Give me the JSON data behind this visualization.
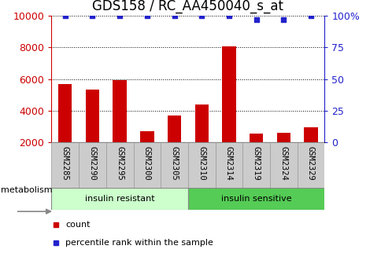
{
  "title": "GDS158 / RC_AA450040_s_at",
  "categories": [
    "GSM2285",
    "GSM2290",
    "GSM2295",
    "GSM2300",
    "GSM2305",
    "GSM2310",
    "GSM2314",
    "GSM2319",
    "GSM2324",
    "GSM2329"
  ],
  "bar_values": [
    5700,
    5350,
    5950,
    2700,
    3700,
    4400,
    8050,
    2550,
    2600,
    2950
  ],
  "bar_color": "#cc0000",
  "bar_bottom": 2000,
  "percentile_values": [
    100,
    100,
    100,
    100,
    100,
    100,
    100,
    97,
    97,
    100
  ],
  "percentile_color": "#2222cc",
  "ylim_left": [
    2000,
    10000
  ],
  "ylim_right": [
    0,
    100
  ],
  "yticks_left": [
    2000,
    4000,
    6000,
    8000,
    10000
  ],
  "yticks_right": [
    0,
    25,
    50,
    75,
    100
  ],
  "yticklabels_right": [
    "0",
    "25",
    "50",
    "75",
    "100%"
  ],
  "group1_label": "insulin resistant",
  "group2_label": "insulin sensitive",
  "group1_color": "#ccffcc",
  "group2_color": "#55cc55",
  "group1_count": 5,
  "group2_count": 5,
  "metabolism_label": "metabolism",
  "legend_count_label": "count",
  "legend_percentile_label": "percentile rank within the sample",
  "title_fontsize": 12,
  "axis_tick_fontsize": 9,
  "label_area_color": "#cccccc",
  "label_area_border": "#999999",
  "bar_width": 0.5
}
